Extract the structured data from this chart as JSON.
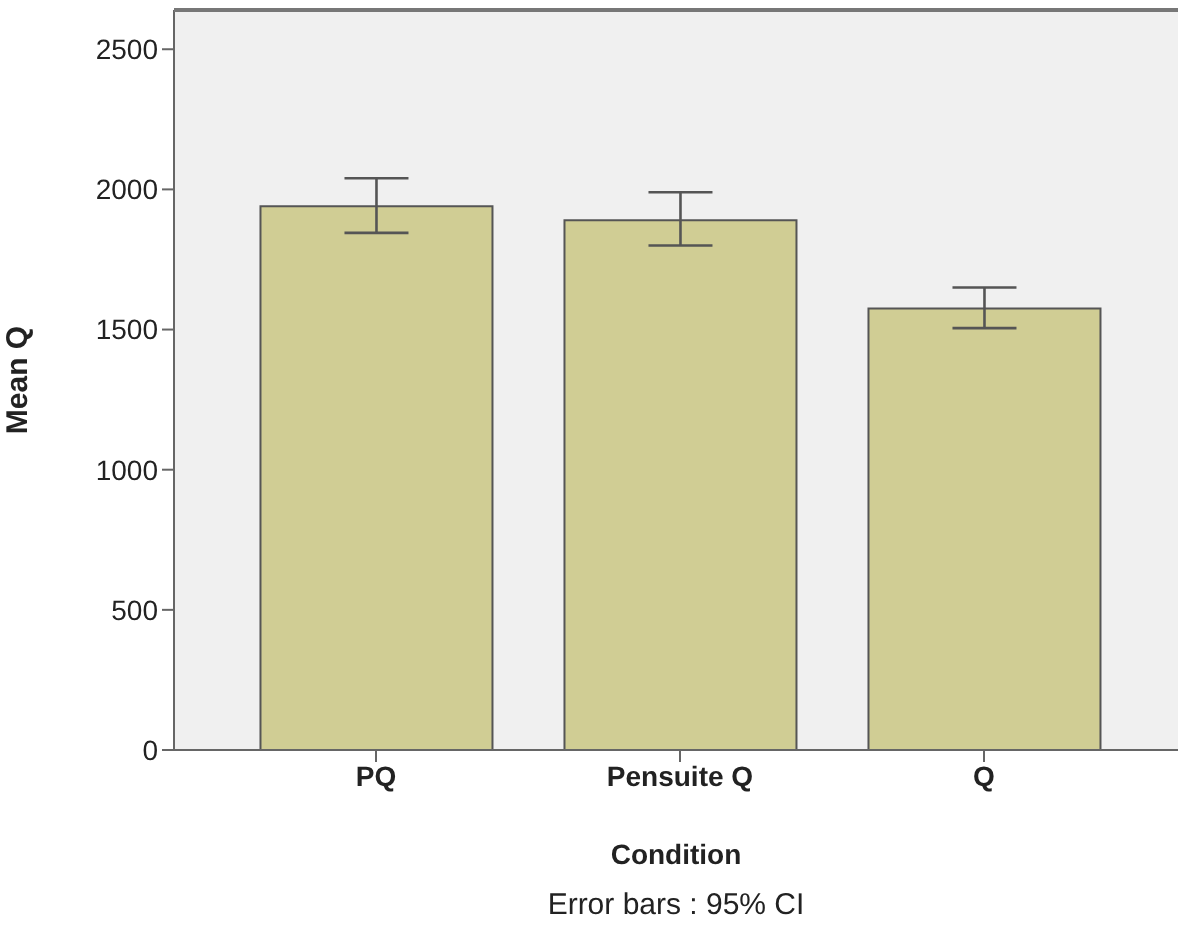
{
  "chart_data": {
    "type": "bar",
    "xlabel": "Condition",
    "ylabel": "Mean Q",
    "categories": [
      "PQ",
      "Pensuite Q",
      "Q"
    ],
    "values": [
      1940,
      1890,
      1575
    ],
    "errors": [
      [
        1845,
        2040
      ],
      [
        1800,
        1990
      ],
      [
        1505,
        1650
      ]
    ],
    "color": "#d0cd94",
    "ylim": [
      0,
      2640
    ],
    "yticks": [
      0,
      500,
      1000,
      1500,
      2000,
      2500
    ],
    "annotations": [
      "Error bars : 95% CI"
    ]
  }
}
